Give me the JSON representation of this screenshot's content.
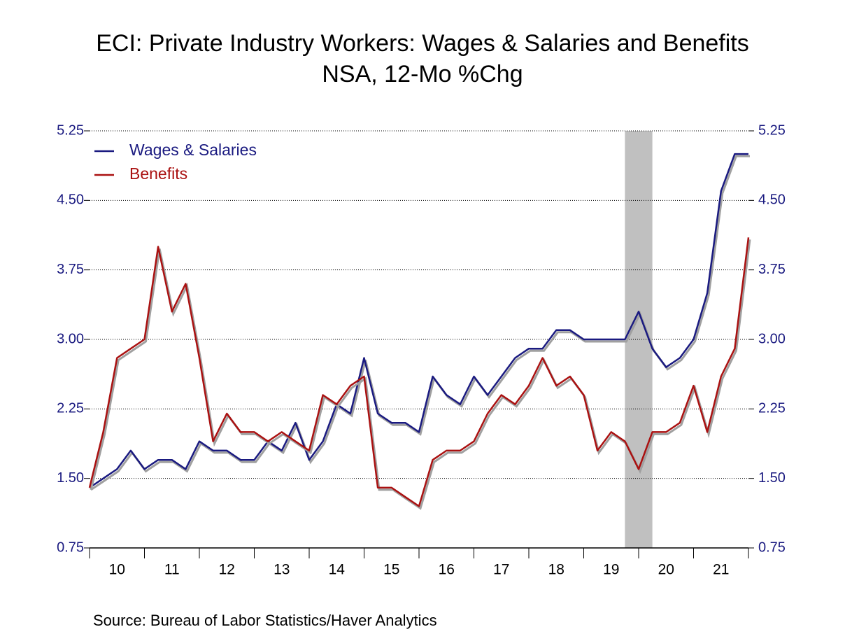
{
  "chart_data": {
    "type": "line",
    "title": "ECI: Private Industry Workers: Wages & Salaries and Benefits",
    "subtitle": "NSA, 12-Mo %Chg",
    "source": "Source:  Bureau of Labor Statistics/Haver Analytics",
    "x": [
      2010,
      2010.25,
      2010.5,
      2010.75,
      2011,
      2011.25,
      2011.5,
      2011.75,
      2012,
      2012.25,
      2012.5,
      2012.75,
      2013,
      2013.25,
      2013.5,
      2013.75,
      2014,
      2014.25,
      2014.5,
      2014.75,
      2015,
      2015.25,
      2015.5,
      2015.75,
      2016,
      2016.25,
      2016.5,
      2016.75,
      2017,
      2017.25,
      2017.5,
      2017.75,
      2018,
      2018.25,
      2018.5,
      2018.75,
      2019,
      2019.25,
      2019.5,
      2019.75,
      2020,
      2020.25,
      2020.5,
      2020.75,
      2021,
      2021.25,
      2021.5,
      2021.75,
      2022
    ],
    "series": [
      {
        "name": "Wages & Salaries",
        "color": "#1a1a80",
        "values": [
          1.4,
          1.5,
          1.6,
          1.8,
          1.6,
          1.7,
          1.7,
          1.6,
          1.9,
          1.8,
          1.8,
          1.7,
          1.7,
          1.9,
          1.8,
          2.1,
          1.7,
          1.9,
          2.3,
          2.2,
          2.8,
          2.2,
          2.1,
          2.1,
          2.0,
          2.6,
          2.4,
          2.3,
          2.6,
          2.4,
          2.6,
          2.8,
          2.9,
          2.9,
          3.1,
          3.1,
          3.0,
          3.0,
          3.0,
          3.0,
          3.3,
          2.9,
          2.7,
          2.8,
          3.0,
          3.5,
          4.6,
          5.0,
          5.0
        ]
      },
      {
        "name": "Benefits",
        "color": "#aa1111",
        "values": [
          1.4,
          2.0,
          2.8,
          2.9,
          3.0,
          4.0,
          3.3,
          3.6,
          2.8,
          1.9,
          2.2,
          2.0,
          2.0,
          1.9,
          2.0,
          1.9,
          1.8,
          2.4,
          2.3,
          2.5,
          2.6,
          1.4,
          1.4,
          1.3,
          1.2,
          1.7,
          1.8,
          1.8,
          1.9,
          2.2,
          2.4,
          2.3,
          2.5,
          2.8,
          2.5,
          2.6,
          2.4,
          1.8,
          2.0,
          1.9,
          1.6,
          2.0,
          2.0,
          2.1,
          2.5,
          2.0,
          2.6,
          2.9,
          4.1
        ]
      }
    ],
    "xlim": [
      2010,
      2022
    ],
    "xticks": [
      {
        "value": 2010.5,
        "label": "10"
      },
      {
        "value": 2011.5,
        "label": "11"
      },
      {
        "value": 2012.5,
        "label": "12"
      },
      {
        "value": 2013.5,
        "label": "13"
      },
      {
        "value": 2014.5,
        "label": "14"
      },
      {
        "value": 2015.5,
        "label": "15"
      },
      {
        "value": 2016.5,
        "label": "16"
      },
      {
        "value": 2017.5,
        "label": "17"
      },
      {
        "value": 2018.5,
        "label": "18"
      },
      {
        "value": 2019.5,
        "label": "19"
      },
      {
        "value": 2020.5,
        "label": "20"
      },
      {
        "value": 2021.5,
        "label": "21"
      }
    ],
    "xminor": [
      2010,
      2011,
      2012,
      2013,
      2014,
      2015,
      2016,
      2017,
      2018,
      2019,
      2020,
      2021,
      2022
    ],
    "ylim": [
      0.75,
      5.25
    ],
    "yticks": [
      0.75,
      {
        "value": 1.5,
        "label": "1.50"
      },
      2.25,
      {
        "value": 3,
        "label": "3.00"
      },
      3.75,
      {
        "value": 4.5,
        "label": "4.50"
      },
      5.25
    ],
    "shading": [
      2019.75,
      2020.25
    ],
    "shading_color": "#c0c0c0",
    "grid": true,
    "legend": "upper left"
  }
}
